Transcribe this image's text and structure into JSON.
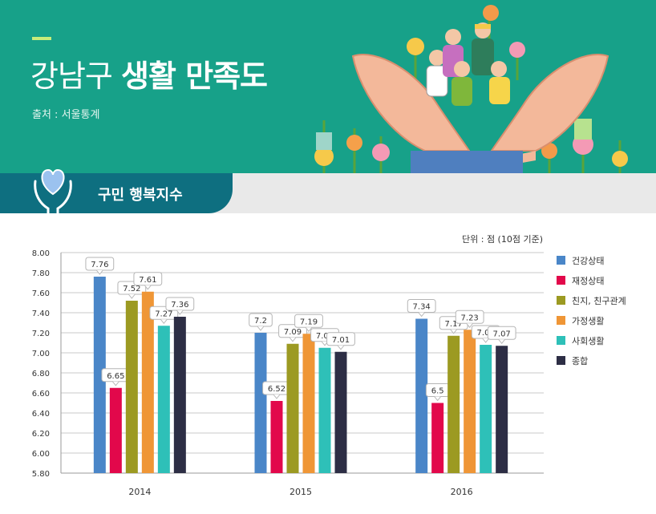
{
  "header": {
    "title_light": "강남구",
    "title_bold": "생활 만족도",
    "source": "출처 : 서울통계"
  },
  "section": {
    "tab_label": "구민 행복지수",
    "icon": "heart-hands-icon"
  },
  "illustration": {
    "icon": "people-in-hands-illustration"
  },
  "chart_data": {
    "type": "bar",
    "unit_label": "단위 : 점 (10점 기준)",
    "categories": [
      "2014",
      "2015",
      "2016"
    ],
    "ylim": [
      5.8,
      8.0
    ],
    "yticks": [
      "8.00",
      "7.80",
      "7.60",
      "7.40",
      "7.20",
      "7.00",
      "6.80",
      "6.60",
      "6.40",
      "6.20",
      "6.00",
      "5.80"
    ],
    "grid": true,
    "legend_position": "right",
    "series": [
      {
        "name": "건강상태",
        "color": "#4a86c8",
        "values": [
          7.76,
          7.2,
          7.34
        ],
        "labels": [
          "7.76",
          "7.2",
          "7.34"
        ]
      },
      {
        "name": "재정상태",
        "color": "#e2084b",
        "values": [
          6.65,
          6.52,
          6.5
        ],
        "labels": [
          "6.65",
          "6.52",
          "6.5"
        ]
      },
      {
        "name": "친지, 친구관계",
        "color": "#9c9a22",
        "values": [
          7.52,
          7.09,
          7.17
        ],
        "labels": [
          "7.52",
          "7.09",
          "7.17"
        ]
      },
      {
        "name": "가정생활",
        "color": "#ef9636",
        "values": [
          7.61,
          7.19,
          7.23
        ],
        "labels": [
          "7.61",
          "7.19",
          "7.23"
        ]
      },
      {
        "name": "사회생활",
        "color": "#2ec0b8",
        "values": [
          7.27,
          7.05,
          7.08
        ],
        "labels": [
          "7.27",
          "7.05",
          "7.08"
        ]
      },
      {
        "name": "종합",
        "color": "#2d2e45",
        "values": [
          7.36,
          7.01,
          7.07
        ],
        "labels": [
          "7.36",
          "7.01",
          "7.07"
        ]
      }
    ]
  }
}
